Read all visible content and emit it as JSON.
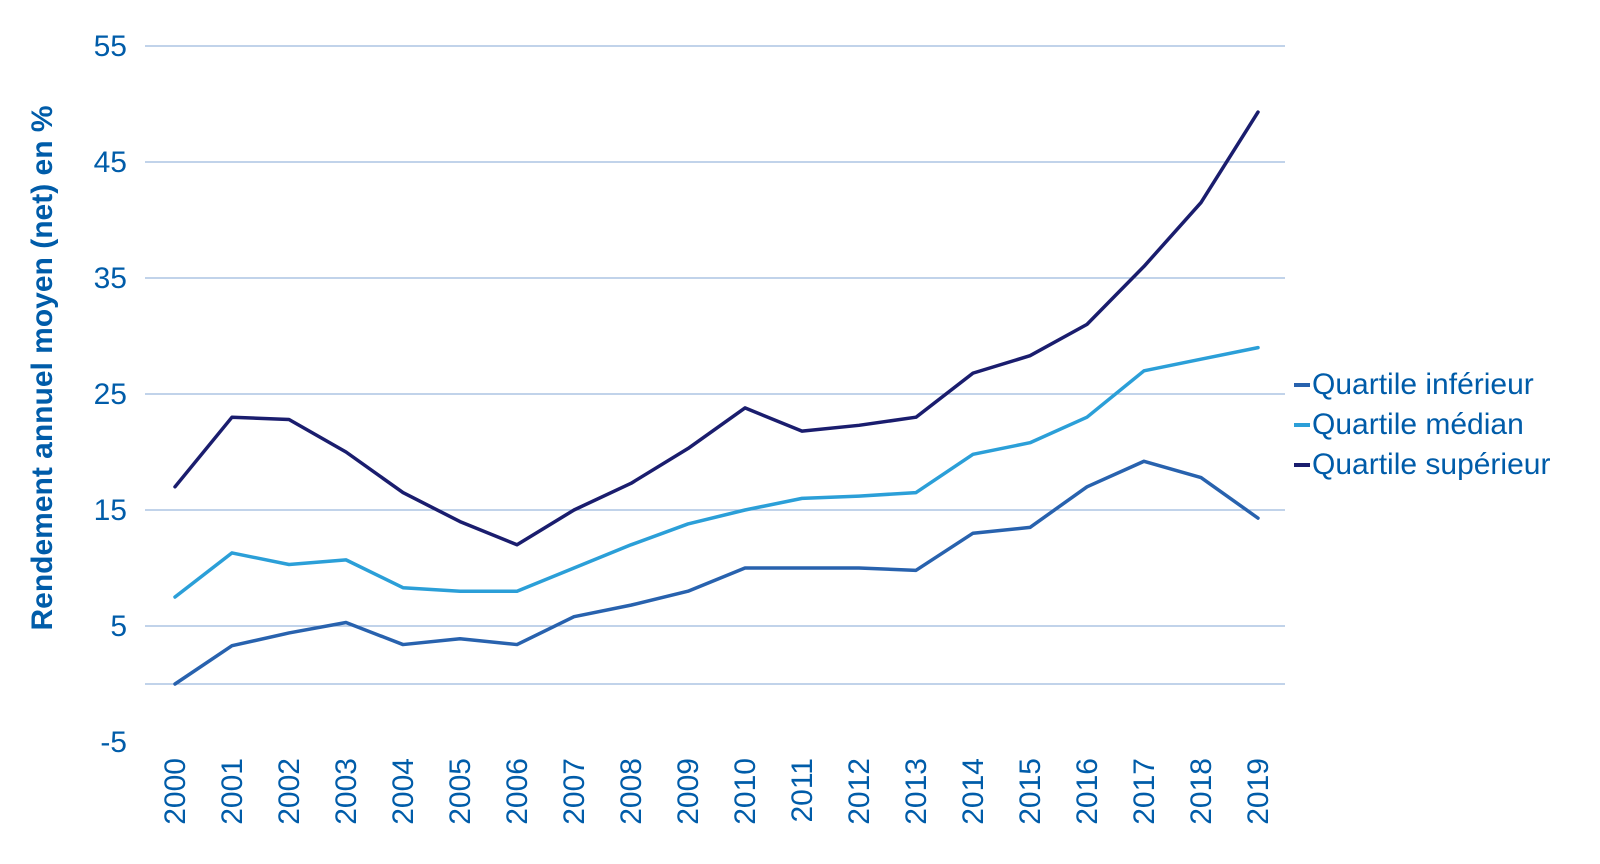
{
  "chart_data": {
    "type": "line",
    "title": "",
    "xlabel": "",
    "ylabel": "Rendement annuel moyen (net) en %",
    "x": [
      2000,
      2001,
      2002,
      2003,
      2004,
      2005,
      2006,
      2007,
      2008,
      2009,
      2010,
      2011,
      2012,
      2013,
      2014,
      2015,
      2016,
      2017,
      2018,
      2019
    ],
    "series": [
      {
        "name": "Quartile inférieur",
        "color": "#2862ae",
        "values": [
          0,
          3.3,
          4.4,
          5.3,
          3.4,
          3.9,
          3.4,
          5.8,
          6.8,
          8,
          10,
          10,
          10,
          9.8,
          13,
          13.5,
          17,
          19.2,
          17.8,
          14.3
        ]
      },
      {
        "name": "Quartile médian",
        "color": "#2b9fd8",
        "values": [
          7.5,
          11.3,
          10.3,
          10.7,
          8.3,
          8,
          8,
          10,
          12,
          13.8,
          15,
          16,
          16.2,
          16.5,
          19.8,
          20.8,
          23,
          27,
          28,
          29
        ]
      },
      {
        "name": "Quartile supérieur",
        "color": "#1a1d6e",
        "values": [
          17,
          23,
          22.8,
          20,
          16.5,
          14,
          12,
          15,
          17.3,
          20.3,
          23.8,
          21.8,
          22.3,
          23,
          26.8,
          28.3,
          31,
          36,
          41.5,
          49.3
        ]
      }
    ],
    "ylim": [
      -5,
      55
    ],
    "yticks": [
      55,
      45,
      35,
      25,
      15,
      5,
      -5
    ],
    "gridlines_at": [
      55,
      45,
      35,
      25,
      15,
      5,
      0
    ],
    "grid": true,
    "legend_position": "right"
  },
  "colors": {
    "axis_text": "#005ca9",
    "gridline": "#9cb9de"
  }
}
